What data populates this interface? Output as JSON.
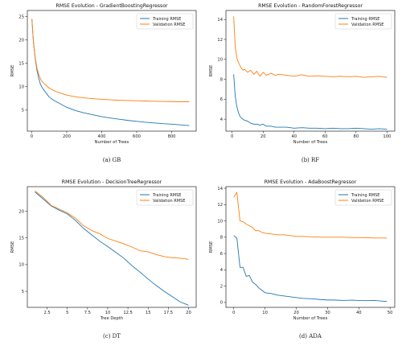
{
  "colors": {
    "training": "#1f77b4",
    "validation": "#ff7f0e"
  },
  "chart_data": [
    {
      "type": "line",
      "title": "RMSE Evolution - GradientBoostingRegressor",
      "caption": "(a) GB",
      "xlabel": "Number of Trees",
      "ylabel": "RMSE",
      "xlim": [
        -25,
        940
      ],
      "ylim": [
        0.5,
        26.3
      ],
      "xticks": [
        0,
        200,
        400,
        600,
        800
      ],
      "yticks": [
        5,
        10,
        15,
        20,
        25
      ],
      "legend": "top-right",
      "series": [
        {
          "name": "Training RMSE",
          "color": "#1f77b4",
          "x": [
            1,
            10,
            20,
            30,
            40,
            50,
            60,
            75,
            100,
            125,
            150,
            200,
            250,
            300,
            350,
            400,
            450,
            500,
            550,
            600,
            650,
            700,
            750,
            800,
            850,
            900
          ],
          "y": [
            24.5,
            19.5,
            16.0,
            13.5,
            11.8,
            10.5,
            9.8,
            9.0,
            7.8,
            7.1,
            6.6,
            5.6,
            4.9,
            4.4,
            4.0,
            3.6,
            3.3,
            3.05,
            2.8,
            2.6,
            2.4,
            2.25,
            2.1,
            2.0,
            1.85,
            1.7
          ]
        },
        {
          "name": "Validation RMSE",
          "color": "#ff7f0e",
          "x": [
            1,
            10,
            20,
            30,
            40,
            50,
            60,
            75,
            100,
            125,
            150,
            200,
            250,
            300,
            350,
            400,
            450,
            500,
            550,
            600,
            650,
            700,
            750,
            800,
            850,
            900
          ],
          "y": [
            24.5,
            19.5,
            16.2,
            14.0,
            12.6,
            11.7,
            11.1,
            10.5,
            9.7,
            9.2,
            8.8,
            8.2,
            7.85,
            7.6,
            7.45,
            7.3,
            7.2,
            7.1,
            7.05,
            7.0,
            6.95,
            6.9,
            6.85,
            6.82,
            6.8,
            6.78
          ]
        }
      ]
    },
    {
      "type": "line",
      "title": "RMSE Evolution - RandomForestRegressor",
      "caption": "(b) RF",
      "xlabel": "Number of Trees",
      "ylabel": "RMSE",
      "xlim": [
        -4,
        105
      ],
      "ylim": [
        2.8,
        14.9
      ],
      "xticks": [
        0,
        20,
        40,
        60,
        80,
        100
      ],
      "yticks": [
        4,
        6,
        8,
        10,
        12,
        14
      ],
      "legend": "top-right",
      "series": [
        {
          "name": "Training RMSE",
          "color": "#1f77b4",
          "x": [
            1,
            2,
            3,
            4,
            5,
            6,
            7,
            8,
            10,
            12,
            14,
            16,
            18,
            20,
            22,
            25,
            28,
            30,
            35,
            40,
            45,
            50,
            55,
            60,
            65,
            70,
            75,
            80,
            85,
            90,
            95,
            100
          ],
          "y": [
            8.5,
            6.3,
            5.3,
            4.7,
            4.3,
            4.1,
            4.0,
            3.9,
            3.8,
            3.6,
            3.5,
            3.5,
            3.4,
            3.5,
            3.3,
            3.3,
            3.2,
            3.2,
            3.2,
            3.1,
            3.15,
            3.1,
            3.1,
            3.05,
            3.1,
            3.05,
            3.05,
            3.1,
            3.05,
            3.0,
            3.05,
            3.0
          ]
        },
        {
          "name": "Validation RMSE",
          "color": "#ff7f0e",
          "x": [
            1,
            2,
            3,
            4,
            5,
            6,
            7,
            8,
            10,
            12,
            14,
            16,
            18,
            20,
            22,
            25,
            28,
            30,
            35,
            40,
            45,
            50,
            55,
            60,
            65,
            70,
            75,
            80,
            85,
            90,
            95,
            100
          ],
          "y": [
            14.3,
            11.3,
            10.2,
            9.7,
            9.4,
            9.1,
            8.9,
            9.0,
            8.7,
            8.9,
            8.5,
            8.8,
            8.3,
            8.7,
            8.4,
            8.6,
            8.4,
            8.5,
            8.4,
            8.3,
            8.45,
            8.3,
            8.35,
            8.3,
            8.25,
            8.3,
            8.25,
            8.3,
            8.2,
            8.25,
            8.3,
            8.2
          ]
        }
      ]
    },
    {
      "type": "line",
      "title": "RMSE Evolution - DecisionTreeRegressor",
      "caption": "(c) DT",
      "xlabel": "Tree Depth",
      "ylabel": "RMSE",
      "xlim": [
        0.05,
        20.95
      ],
      "ylim": [
        2,
        24.6
      ],
      "xticks": [
        2.5,
        5.0,
        7.5,
        10.0,
        12.5,
        15.0,
        17.5,
        20.0
      ],
      "yticks": [
        5,
        10,
        15,
        20
      ],
      "legend": "top-right",
      "series": [
        {
          "name": "Training RMSE",
          "color": "#1f77b4",
          "x": [
            1,
            2,
            3,
            4,
            5,
            6,
            7,
            8,
            9,
            10,
            11,
            12,
            13,
            14,
            15,
            16,
            17,
            18,
            19,
            20
          ],
          "y": [
            23.6,
            22.3,
            21.0,
            20.2,
            19.5,
            18.3,
            16.8,
            15.6,
            14.4,
            13.4,
            12.3,
            11.2,
            9.8,
            8.6,
            7.3,
            6.1,
            5.0,
            4.0,
            3.0,
            2.4
          ]
        },
        {
          "name": "Validation RMSE",
          "color": "#ff7f0e",
          "x": [
            1,
            2,
            3,
            4,
            5,
            6,
            7,
            8,
            9,
            10,
            11,
            12,
            13,
            14,
            15,
            16,
            17,
            18,
            19,
            20
          ],
          "y": [
            23.8,
            22.6,
            21.1,
            20.4,
            19.7,
            18.7,
            17.3,
            16.4,
            15.8,
            14.9,
            14.4,
            13.9,
            13.3,
            12.6,
            12.4,
            11.9,
            11.5,
            11.3,
            11.2,
            11.0
          ]
        }
      ]
    },
    {
      "type": "line",
      "title": "RMSE Evolution - AdaBoostRegressor",
      "caption": "(d) ADA",
      "xlabel": "Number of Trees",
      "ylabel": "RMSE",
      "xlim": [
        -2.5,
        51.5
      ],
      "ylim": [
        -0.6,
        14.2
      ],
      "xticks": [
        0,
        10,
        20,
        30,
        40,
        50
      ],
      "yticks": [
        0,
        2,
        4,
        6,
        8,
        10,
        12,
        14
      ],
      "legend": "top-right",
      "series": [
        {
          "name": "Training RMSE",
          "color": "#1f77b4",
          "x": [
            0,
            1,
            2,
            3,
            4,
            5,
            6,
            7,
            8,
            9,
            10,
            12,
            14,
            16,
            18,
            20,
            22,
            25,
            28,
            30,
            32,
            35,
            38,
            40,
            42,
            45,
            48,
            49
          ],
          "y": [
            8.2,
            7.9,
            4.3,
            4.3,
            3.2,
            3.3,
            2.5,
            2.2,
            1.8,
            1.5,
            1.2,
            1.1,
            0.9,
            0.8,
            0.7,
            0.6,
            0.5,
            0.45,
            0.35,
            0.3,
            0.3,
            0.25,
            0.28,
            0.25,
            0.22,
            0.25,
            0.15,
            0.12
          ]
        },
        {
          "name": "Validation RMSE",
          "color": "#ff7f0e",
          "x": [
            0,
            1,
            2,
            3,
            4,
            5,
            6,
            7,
            8,
            9,
            10,
            12,
            14,
            16,
            18,
            20,
            22,
            25,
            28,
            30,
            32,
            35,
            38,
            40,
            42,
            45,
            48,
            49
          ],
          "y": [
            12.9,
            13.5,
            10.0,
            9.9,
            9.6,
            9.4,
            9.2,
            8.8,
            8.8,
            8.6,
            8.5,
            8.4,
            8.3,
            8.3,
            8.2,
            8.1,
            8.1,
            8.05,
            8.0,
            8.0,
            8.0,
            8.0,
            7.95,
            7.95,
            7.95,
            7.9,
            7.9,
            7.9
          ]
        }
      ]
    }
  ]
}
